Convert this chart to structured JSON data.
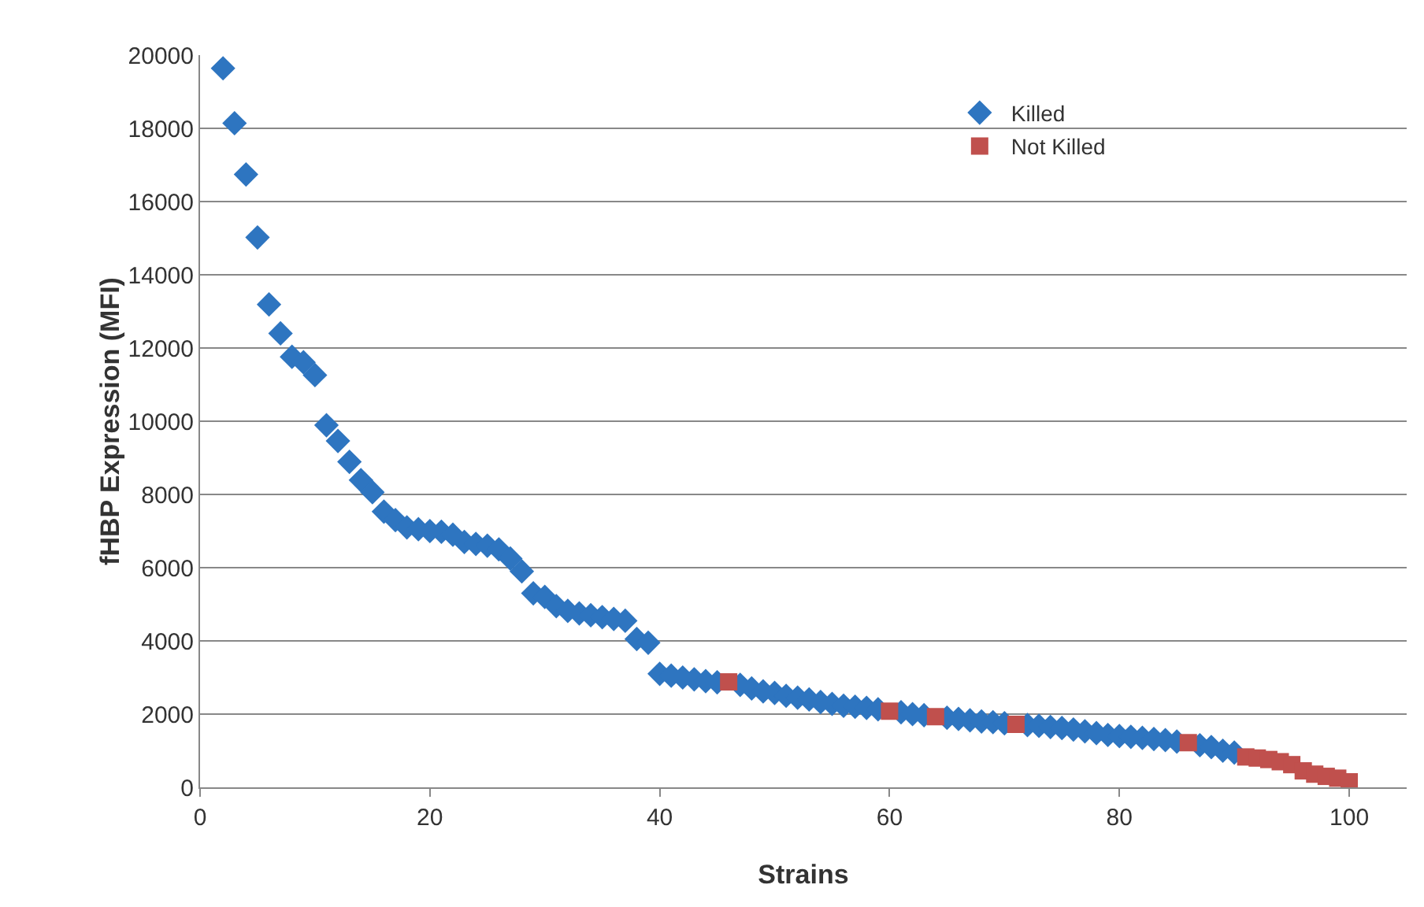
{
  "chart_data": {
    "type": "scatter",
    "xlabel": "Strains",
    "ylabel": "fHBP Expression (MFI)",
    "xlim": [
      0,
      105
    ],
    "xticks": [
      0,
      20,
      40,
      60,
      80,
      100
    ],
    "ylim": [
      0,
      20000
    ],
    "yticks": [
      0,
      2000,
      4000,
      6000,
      8000,
      10000,
      12000,
      14000,
      16000,
      18000,
      20000
    ],
    "grid": "y",
    "legend": "top right",
    "series": [
      {
        "name": "Killed",
        "color": "#2e75c0",
        "marker": "diamond",
        "x": [
          2,
          3,
          4,
          5,
          6,
          7,
          8,
          9,
          10,
          11,
          12,
          13,
          14,
          15,
          16,
          17,
          18,
          19,
          20,
          21,
          22,
          23,
          24,
          25,
          26,
          27,
          28,
          29,
          30,
          31,
          32,
          33,
          34,
          35,
          36,
          37,
          38,
          39,
          40,
          41,
          42,
          43,
          44,
          45,
          47,
          48,
          49,
          50,
          51,
          52,
          53,
          54,
          55,
          56,
          57,
          58,
          59,
          61,
          62,
          63,
          65,
          66,
          67,
          68,
          69,
          70,
          72,
          73,
          74,
          75,
          76,
          77,
          78,
          79,
          80,
          81,
          82,
          83,
          84,
          85,
          87,
          88,
          89,
          90
        ],
        "values": [
          19640,
          18140,
          16740,
          15020,
          13190,
          12400,
          11760,
          11610,
          11260,
          9890,
          9460,
          8890,
          8390,
          8060,
          7530,
          7300,
          7100,
          7050,
          7000,
          6980,
          6900,
          6700,
          6650,
          6600,
          6500,
          6250,
          5900,
          5300,
          5200,
          4950,
          4820,
          4750,
          4700,
          4650,
          4600,
          4550,
          4050,
          3950,
          3100,
          3050,
          3000,
          2950,
          2900,
          2870,
          2800,
          2700,
          2620,
          2580,
          2500,
          2450,
          2400,
          2330,
          2280,
          2230,
          2200,
          2170,
          2130,
          2050,
          2000,
          1970,
          1900,
          1870,
          1830,
          1800,
          1780,
          1750,
          1700,
          1680,
          1650,
          1620,
          1580,
          1530,
          1480,
          1430,
          1400,
          1380,
          1350,
          1320,
          1290,
          1250,
          1150,
          1100,
          1000,
          950
        ]
      },
      {
        "name": "Not Killed",
        "color": "#c0504d",
        "marker": "square",
        "x": [
          46,
          60,
          64,
          71,
          86,
          91,
          92,
          93,
          94,
          95,
          96,
          97,
          98,
          99,
          100
        ],
        "values": [
          2880,
          2080,
          1930,
          1720,
          1220,
          830,
          800,
          760,
          700,
          620,
          450,
          360,
          300,
          250,
          150
        ]
      }
    ]
  }
}
